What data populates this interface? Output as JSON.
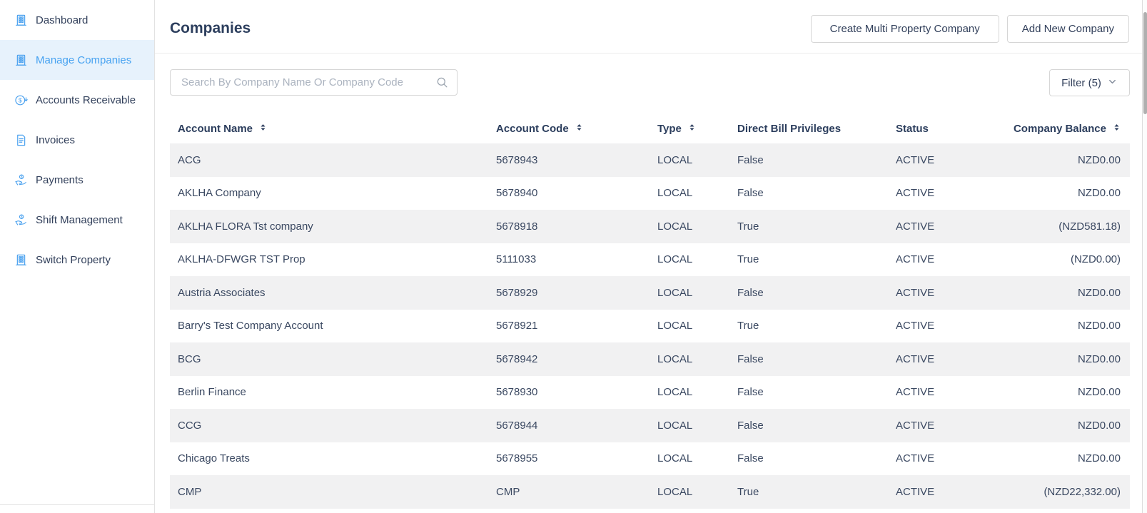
{
  "sidebar": {
    "items": [
      {
        "label": "Dashboard",
        "icon": "building-icon",
        "active": false
      },
      {
        "label": "Manage Companies",
        "icon": "building-icon",
        "active": true
      },
      {
        "label": "Accounts Receivable",
        "icon": "dollar-refund-icon",
        "active": false
      },
      {
        "label": "Invoices",
        "icon": "invoice-icon",
        "active": false
      },
      {
        "label": "Payments",
        "icon": "hand-coin-icon",
        "active": false
      },
      {
        "label": "Shift Management",
        "icon": "hand-coin-icon",
        "active": false
      },
      {
        "label": "Switch Property",
        "icon": "building-icon",
        "active": false
      }
    ]
  },
  "header": {
    "title": "Companies",
    "create_multi_button": "Create Multi Property Company",
    "add_new_button": "Add New Company"
  },
  "toolbar": {
    "search_placeholder": "Search By Company Name Or Company Code",
    "search_value": "",
    "filter_label": "Filter (5)"
  },
  "table": {
    "columns": [
      {
        "label": "Account Name",
        "sortable": true,
        "align": "left"
      },
      {
        "label": "Account Code",
        "sortable": true,
        "align": "left"
      },
      {
        "label": "Type",
        "sortable": true,
        "align": "left"
      },
      {
        "label": "Direct Bill Privileges",
        "sortable": false,
        "align": "left"
      },
      {
        "label": "Status",
        "sortable": false,
        "align": "left"
      },
      {
        "label": "Company Balance",
        "sortable": true,
        "align": "right"
      }
    ],
    "rows": [
      {
        "account_name": "ACG",
        "account_code": "5678943",
        "type": "LOCAL",
        "direct_bill_privileges": "False",
        "status": "ACTIVE",
        "company_balance": "NZD0.00"
      },
      {
        "account_name": "AKLHA Company",
        "account_code": "5678940",
        "type": "LOCAL",
        "direct_bill_privileges": "False",
        "status": "ACTIVE",
        "company_balance": "NZD0.00"
      },
      {
        "account_name": "AKLHA FLORA Tst company",
        "account_code": "5678918",
        "type": "LOCAL",
        "direct_bill_privileges": "True",
        "status": "ACTIVE",
        "company_balance": "(NZD581.18)"
      },
      {
        "account_name": "AKLHA-DFWGR TST Prop",
        "account_code": "5111033",
        "type": "LOCAL",
        "direct_bill_privileges": "True",
        "status": "ACTIVE",
        "company_balance": "(NZD0.00)"
      },
      {
        "account_name": "Austria Associates",
        "account_code": "5678929",
        "type": "LOCAL",
        "direct_bill_privileges": "False",
        "status": "ACTIVE",
        "company_balance": "NZD0.00"
      },
      {
        "account_name": "Barry's Test Company Account",
        "account_code": "5678921",
        "type": "LOCAL",
        "direct_bill_privileges": "True",
        "status": "ACTIVE",
        "company_balance": "NZD0.00"
      },
      {
        "account_name": "BCG",
        "account_code": "5678942",
        "type": "LOCAL",
        "direct_bill_privileges": "False",
        "status": "ACTIVE",
        "company_balance": "NZD0.00"
      },
      {
        "account_name": "Berlin Finance",
        "account_code": "5678930",
        "type": "LOCAL",
        "direct_bill_privileges": "False",
        "status": "ACTIVE",
        "company_balance": "NZD0.00"
      },
      {
        "account_name": "CCG",
        "account_code": "5678944",
        "type": "LOCAL",
        "direct_bill_privileges": "False",
        "status": "ACTIVE",
        "company_balance": "NZD0.00"
      },
      {
        "account_name": "Chicago Treats",
        "account_code": "5678955",
        "type": "LOCAL",
        "direct_bill_privileges": "False",
        "status": "ACTIVE",
        "company_balance": "NZD0.00"
      },
      {
        "account_name": "CMP",
        "account_code": "CMP",
        "type": "LOCAL",
        "direct_bill_privileges": "True",
        "status": "ACTIVE",
        "company_balance": "(NZD22,332.00)"
      }
    ]
  },
  "colors": {
    "accent_blue": "#46A2F1",
    "accent_blue_bg": "#E7F2FC",
    "text_dark": "#2C3E5D",
    "row_stripe": "#F1F1F2",
    "border_gray": "#D6D6D6",
    "placeholder_gray": "#ABB3BF",
    "scrollbar_thumb": "#AFAFAF"
  }
}
